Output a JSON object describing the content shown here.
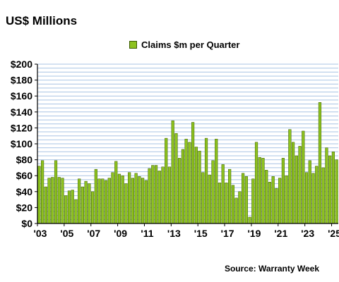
{
  "header": {
    "title": "US$ Millions"
  },
  "source": "Source: Warranty Week",
  "chart_data": {
    "type": "bar",
    "legend": {
      "label": "Claims $m per Quarter",
      "position": "top-center"
    },
    "bar_color": "#8dc21f",
    "bar_edge_color": "#3a5a00",
    "grid_color": "#a9c4e4",
    "ylim": [
      0,
      200
    ],
    "grid": true,
    "y_ticks": [
      {
        "value": 0,
        "label": "$0"
      },
      {
        "value": 20,
        "label": "$20"
      },
      {
        "value": 40,
        "label": "$40"
      },
      {
        "value": 60,
        "label": "$60"
      },
      {
        "value": 80,
        "label": "$80"
      },
      {
        "value": 100,
        "label": "$100"
      },
      {
        "value": 120,
        "label": "$120"
      },
      {
        "value": 140,
        "label": "$140"
      },
      {
        "value": 160,
        "label": "$160"
      },
      {
        "value": 180,
        "label": "$180"
      },
      {
        "value": 200,
        "label": "$200"
      }
    ],
    "x_ticks": [
      {
        "index": 0,
        "label": "'03"
      },
      {
        "index": 8,
        "label": "'05"
      },
      {
        "index": 16,
        "label": "'07"
      },
      {
        "index": 24,
        "label": "'09"
      },
      {
        "index": 32,
        "label": "'11"
      },
      {
        "index": 40,
        "label": "'13"
      },
      {
        "index": 48,
        "label": "'15"
      },
      {
        "index": 56,
        "label": "'17"
      },
      {
        "index": 64,
        "label": "'19"
      },
      {
        "index": 72,
        "label": "'21"
      },
      {
        "index": 80,
        "label": "'23"
      },
      {
        "index": 88,
        "label": "'25"
      }
    ],
    "values": [
      72,
      79,
      46,
      57,
      58,
      79,
      58,
      57,
      35,
      41,
      42,
      30,
      56,
      46,
      53,
      50,
      40,
      68,
      56,
      56,
      54,
      57,
      64,
      78,
      62,
      60,
      50,
      64,
      57,
      63,
      59,
      57,
      54,
      69,
      73,
      73,
      66,
      71,
      107,
      71,
      129,
      113,
      82,
      93,
      106,
      102,
      127,
      96,
      91,
      64,
      107,
      61,
      79,
      106,
      51,
      74,
      51,
      68,
      48,
      32,
      40,
      63,
      59,
      8,
      56,
      102,
      83,
      82,
      67,
      52,
      59,
      44,
      57,
      82,
      60,
      118,
      102,
      85,
      97,
      116,
      64,
      79,
      63,
      72,
      152,
      70,
      95,
      85,
      90,
      80
    ]
  }
}
